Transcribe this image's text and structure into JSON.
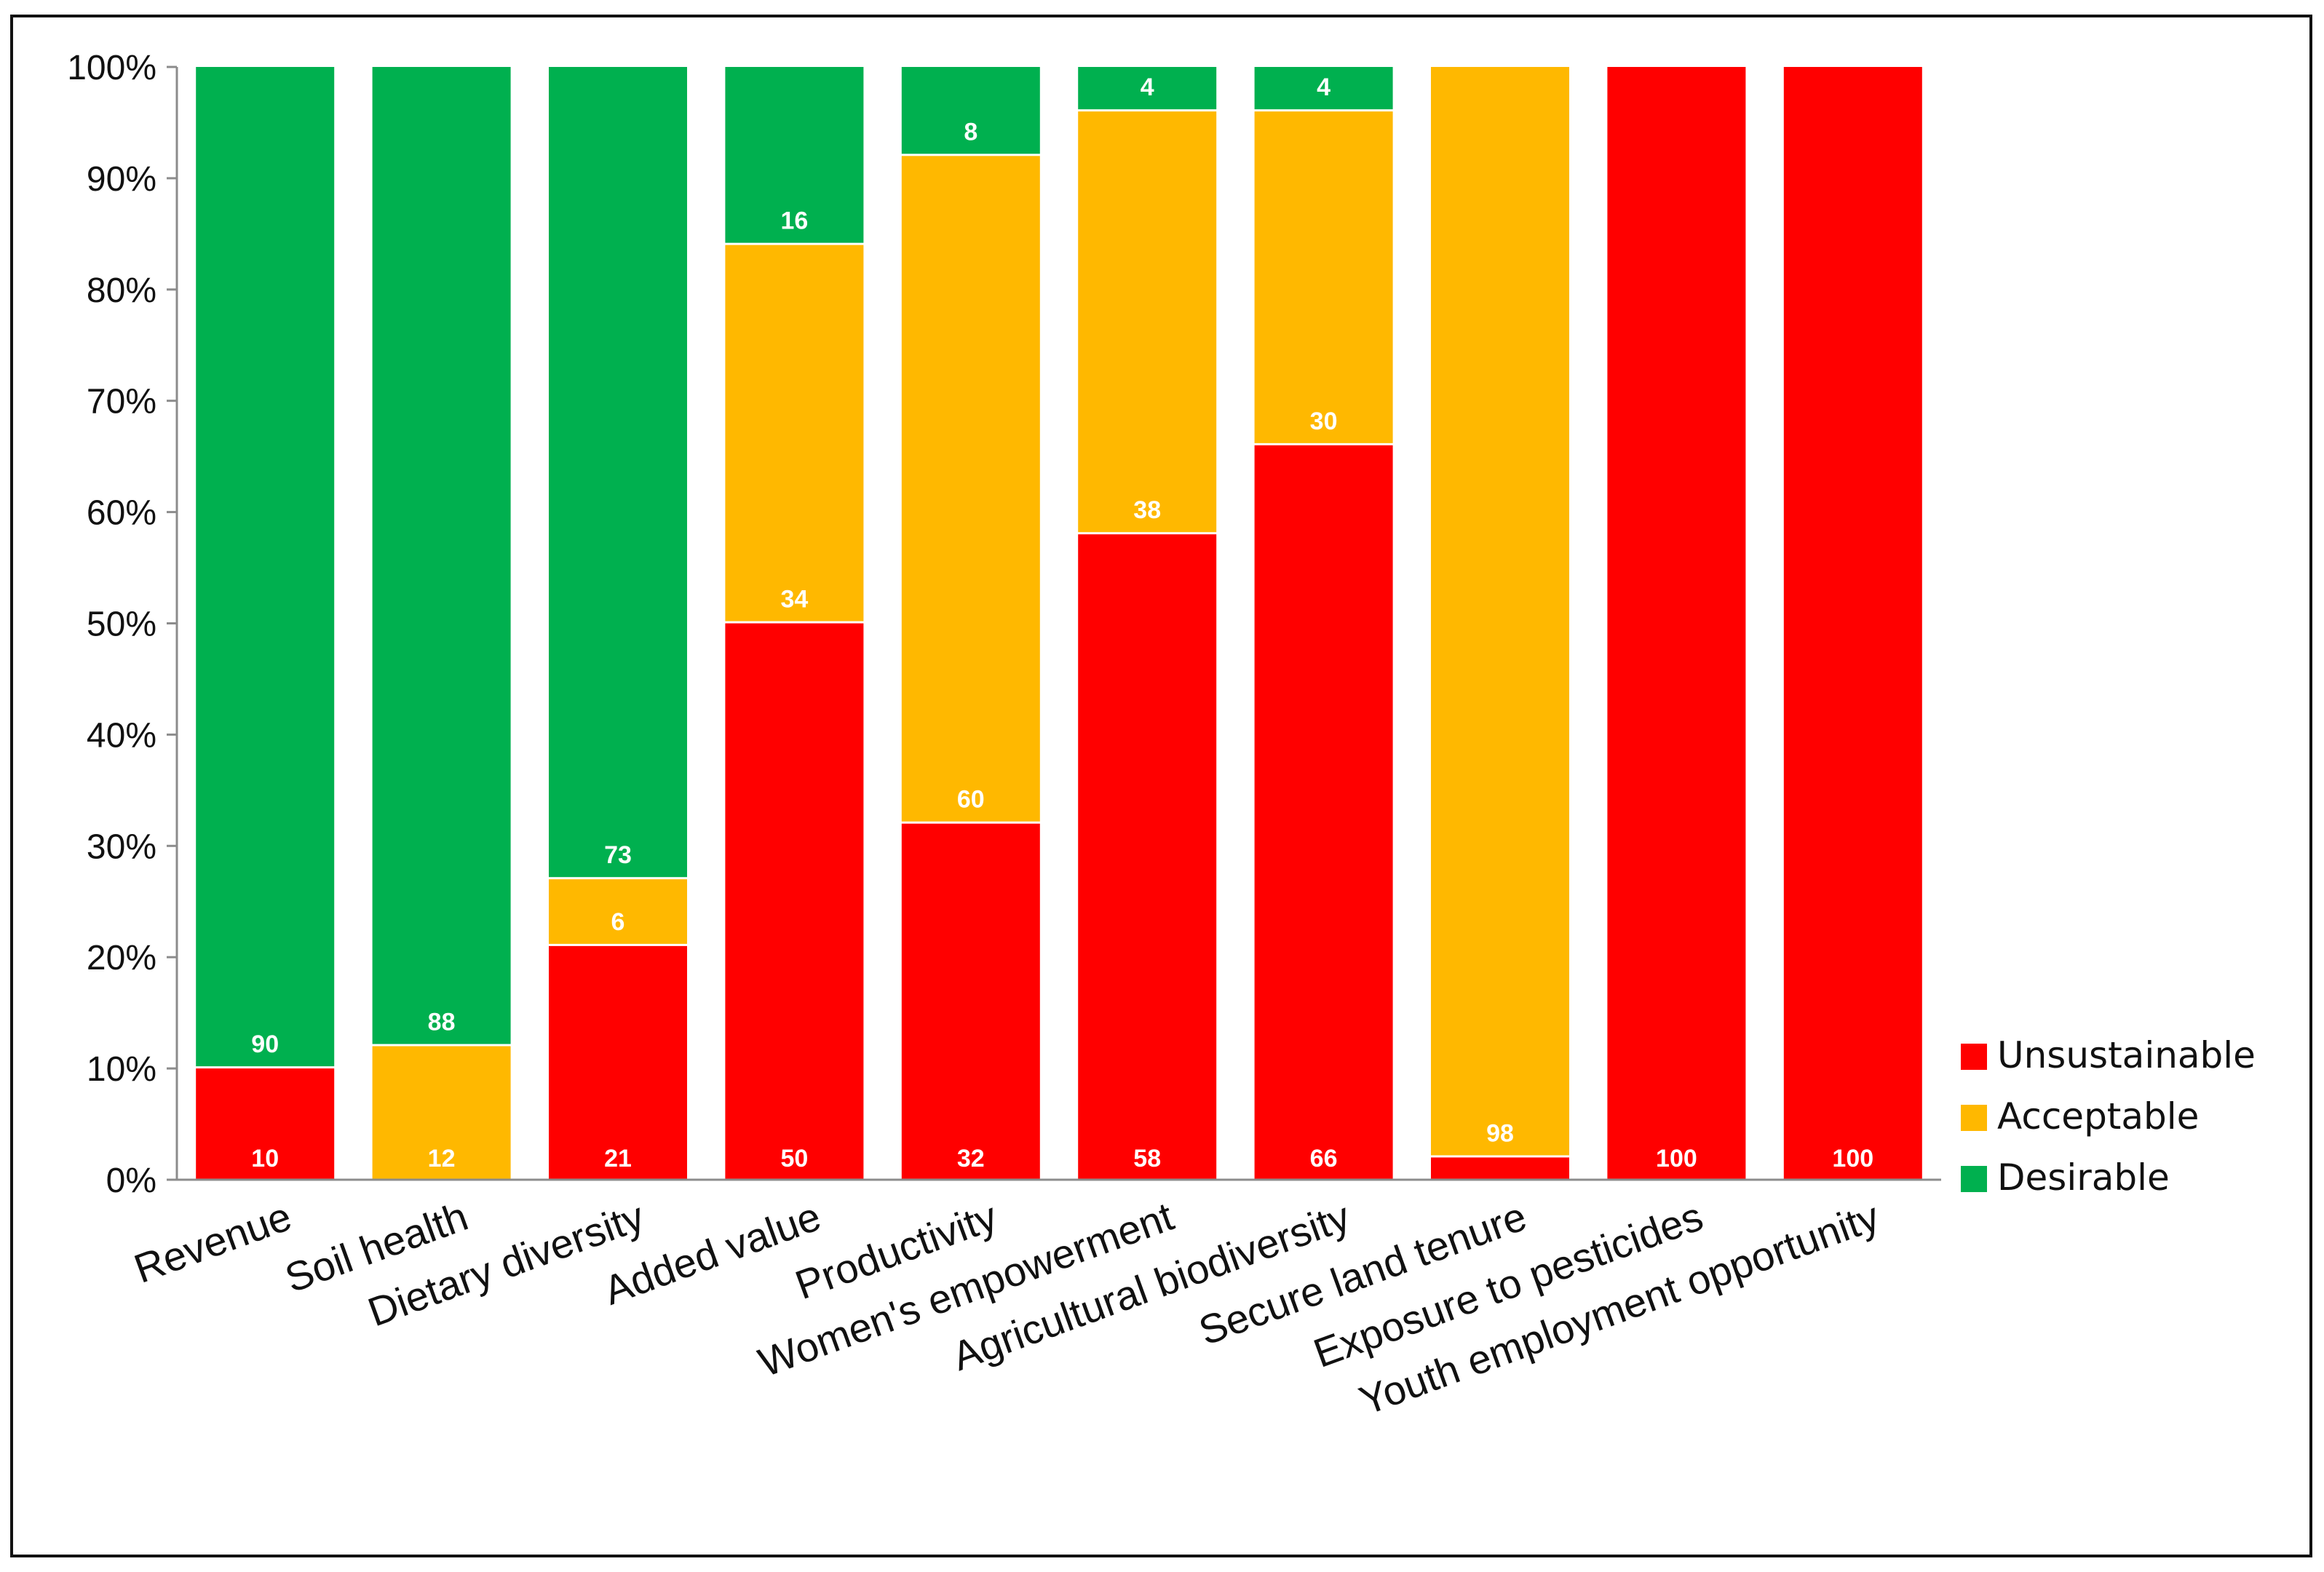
{
  "chart_data": {
    "type": "bar",
    "stacked": true,
    "title": "",
    "xlabel": "",
    "ylabel": "",
    "ylim": [
      0,
      100
    ],
    "y_ticks": [
      "0%",
      "10%",
      "20%",
      "30%",
      "40%",
      "50%",
      "60%",
      "70%",
      "80%",
      "90%",
      "100%"
    ],
    "grid": false,
    "legend_position": "right",
    "categories": [
      "Revenue",
      "Soil health",
      "Dietary diversity",
      "Added value",
      "Productivity",
      "Women's empowerment",
      "Agricultural biodiversity",
      "Secure land tenure",
      "Exposure to pesticides",
      "Youth employment opportunity"
    ],
    "series": [
      {
        "name": "Unsustainable",
        "color": "#ff0000",
        "values": [
          10,
          0,
          21,
          50,
          32,
          58,
          66,
          2,
          100,
          100
        ],
        "labels": [
          "10",
          "",
          "21",
          "50",
          "32",
          "58",
          "66",
          "",
          "100",
          "100"
        ]
      },
      {
        "name": "Acceptable",
        "color": "#ffb800",
        "values": [
          0,
          12,
          6,
          34,
          60,
          38,
          30,
          98,
          0,
          0
        ],
        "labels": [
          "",
          "12",
          "6",
          "34",
          "60",
          "38",
          "30",
          "98",
          "",
          ""
        ]
      },
      {
        "name": "Desirable",
        "color": "#00b04f",
        "values": [
          90,
          88,
          73,
          16,
          8,
          4,
          4,
          0,
          0,
          0
        ],
        "labels": [
          "90",
          "88",
          "73",
          "16",
          "8",
          "4",
          "4",
          "",
          "",
          ""
        ]
      }
    ]
  }
}
